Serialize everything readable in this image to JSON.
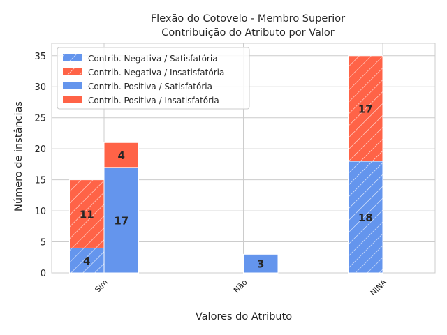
{
  "chart_data": {
    "type": "bar",
    "stacked": true,
    "grouped": true,
    "title": "Flexão do Cotovelo - Membro Superior",
    "subtitle": "Contribuição do Atributo por Valor",
    "xlabel": "Valores do Atributo",
    "ylabel": "Número de instâncias",
    "categories": [
      "Sim",
      "Não",
      "NINA"
    ],
    "ylim": [
      0,
      37
    ],
    "yticks": [
      0,
      5,
      10,
      15,
      20,
      25,
      30,
      35
    ],
    "grid": true,
    "legend_position": "top-left",
    "colors": {
      "satisfatoria": "#6495ed",
      "insatisfatoria": "#ff6347"
    },
    "groups": [
      {
        "name": "Contrib. Negativa",
        "hatched": true,
        "series": [
          {
            "name": "Contrib. Negativa / Satisfatória",
            "color": "#6495ed",
            "values": [
              4,
              0,
              18
            ]
          },
          {
            "name": "Contrib. Negativa / Insatisfatória",
            "color": "#ff6347",
            "values": [
              11,
              0,
              17
            ]
          }
        ]
      },
      {
        "name": "Contrib. Positiva",
        "hatched": false,
        "series": [
          {
            "name": "Contrib. Positiva / Satisfatória",
            "color": "#6495ed",
            "values": [
              17,
              3,
              0
            ]
          },
          {
            "name": "Contrib. Positiva / Insatisfatória",
            "color": "#ff6347",
            "values": [
              4,
              0,
              0
            ]
          }
        ]
      }
    ]
  }
}
